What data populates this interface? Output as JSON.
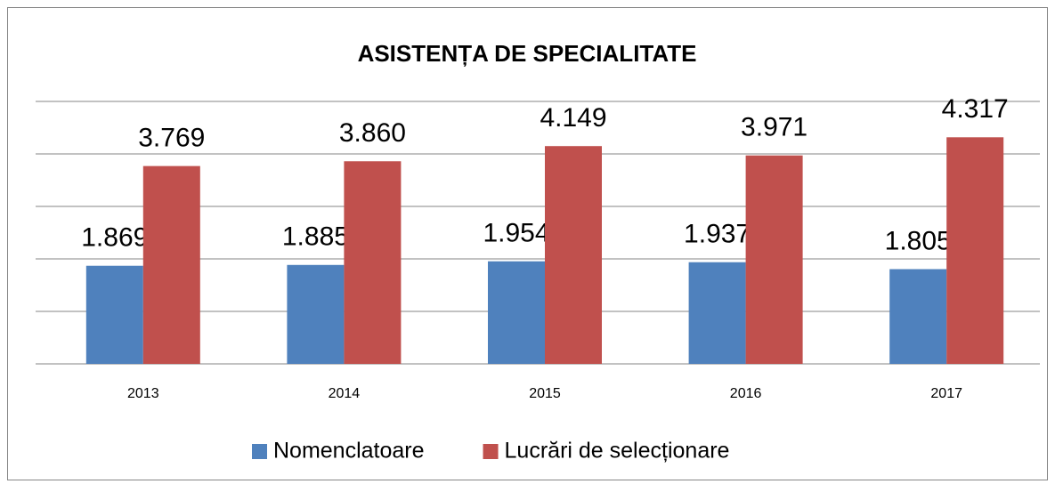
{
  "chart_data": {
    "type": "bar",
    "title": "ASISTENȚA DE SPECIALITATE",
    "categories": [
      "2013",
      "2014",
      "2015",
      "2016",
      "2017"
    ],
    "series": [
      {
        "name": "Nomenclatoare",
        "color": "#4f81bd",
        "values": [
          1869,
          1885,
          1954,
          1937,
          1805
        ],
        "value_labels": [
          "1.869",
          "1.885",
          "1.954",
          "1.937",
          "1.805"
        ]
      },
      {
        "name": "Lucrări de selecționare",
        "color": "#c0504d",
        "values": [
          3769,
          3860,
          4149,
          3971,
          4317
        ],
        "value_labels": [
          "3.769",
          "3.860",
          "4.149",
          "3.971",
          "4.317"
        ]
      }
    ],
    "ylim": [
      0,
      5000
    ],
    "yticks": [
      0,
      1000,
      2000,
      3000,
      4000,
      5000
    ],
    "grid": true,
    "legend": "bottom"
  }
}
